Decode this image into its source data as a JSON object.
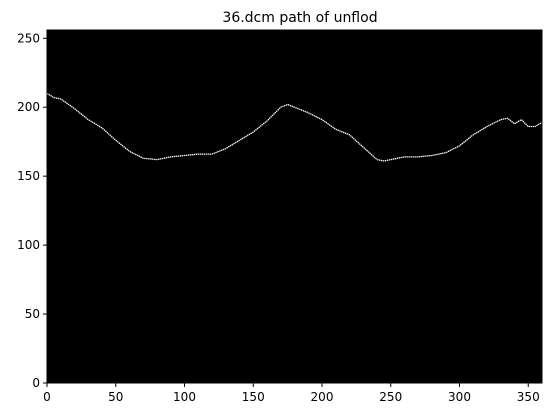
{
  "chart_data": {
    "type": "line",
    "title": "36.dcm  path of unflod",
    "xlabel": "",
    "ylabel": "",
    "xlim": [
      0,
      360
    ],
    "ylim": [
      0,
      256
    ],
    "x_ticks": [
      0,
      50,
      100,
      150,
      200,
      250,
      300,
      350
    ],
    "y_ticks": [
      0,
      50,
      100,
      150,
      200,
      250
    ],
    "grid": false,
    "background_color": "#000000",
    "line_color": "#ffffff",
    "x": [
      0,
      5,
      10,
      20,
      30,
      40,
      50,
      60,
      70,
      80,
      90,
      100,
      110,
      120,
      130,
      140,
      150,
      160,
      170,
      175,
      180,
      190,
      200,
      210,
      220,
      230,
      240,
      245,
      250,
      260,
      270,
      280,
      290,
      300,
      310,
      320,
      330,
      335,
      340,
      345,
      350,
      355,
      360
    ],
    "y": [
      210,
      207,
      206,
      199,
      191,
      185,
      176,
      168,
      163,
      162,
      164,
      165,
      166,
      166,
      170,
      176,
      182,
      190,
      200,
      202,
      200,
      196,
      191,
      184,
      180,
      171,
      162,
      161,
      162,
      164,
      164,
      165,
      167,
      172,
      180,
      186,
      191,
      192,
      188,
      191,
      186,
      186,
      189
    ]
  }
}
